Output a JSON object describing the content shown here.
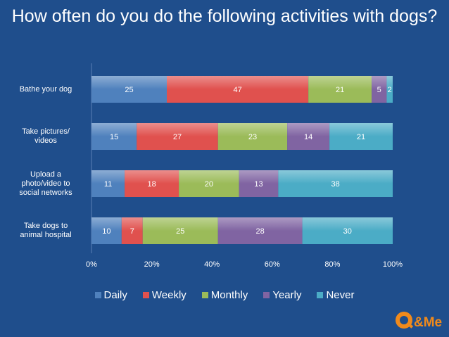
{
  "chart_data": {
    "type": "bar",
    "orientation": "horizontal",
    "stacked": true,
    "percent": true,
    "title": "How often do you do the following activities with dogs?",
    "categories": [
      "Bathe your dog",
      "Take pictures/ videos",
      "Upload a photo/video to social networks",
      "Take dogs to animal hospital"
    ],
    "series": [
      {
        "name": "Daily",
        "color": "#4f81bd",
        "values": [
          25,
          15,
          11,
          10
        ]
      },
      {
        "name": "Weekly",
        "color": "#e0514e",
        "values": [
          47,
          27,
          18,
          7
        ]
      },
      {
        "name": "Monthly",
        "color": "#9bbb59",
        "values": [
          21,
          23,
          20,
          25
        ]
      },
      {
        "name": "Yearly",
        "color": "#8064a2",
        "values": [
          5,
          14,
          13,
          28
        ]
      },
      {
        "name": "Never",
        "color": "#4bacc6",
        "values": [
          2,
          21,
          38,
          30
        ]
      }
    ],
    "x_ticks": [
      "0%",
      "20%",
      "40%",
      "60%",
      "80%",
      "100%"
    ],
    "xlim": [
      0,
      100
    ],
    "legend": "bottom",
    "grid": false
  },
  "logo": {
    "text": "Q&Me"
  }
}
